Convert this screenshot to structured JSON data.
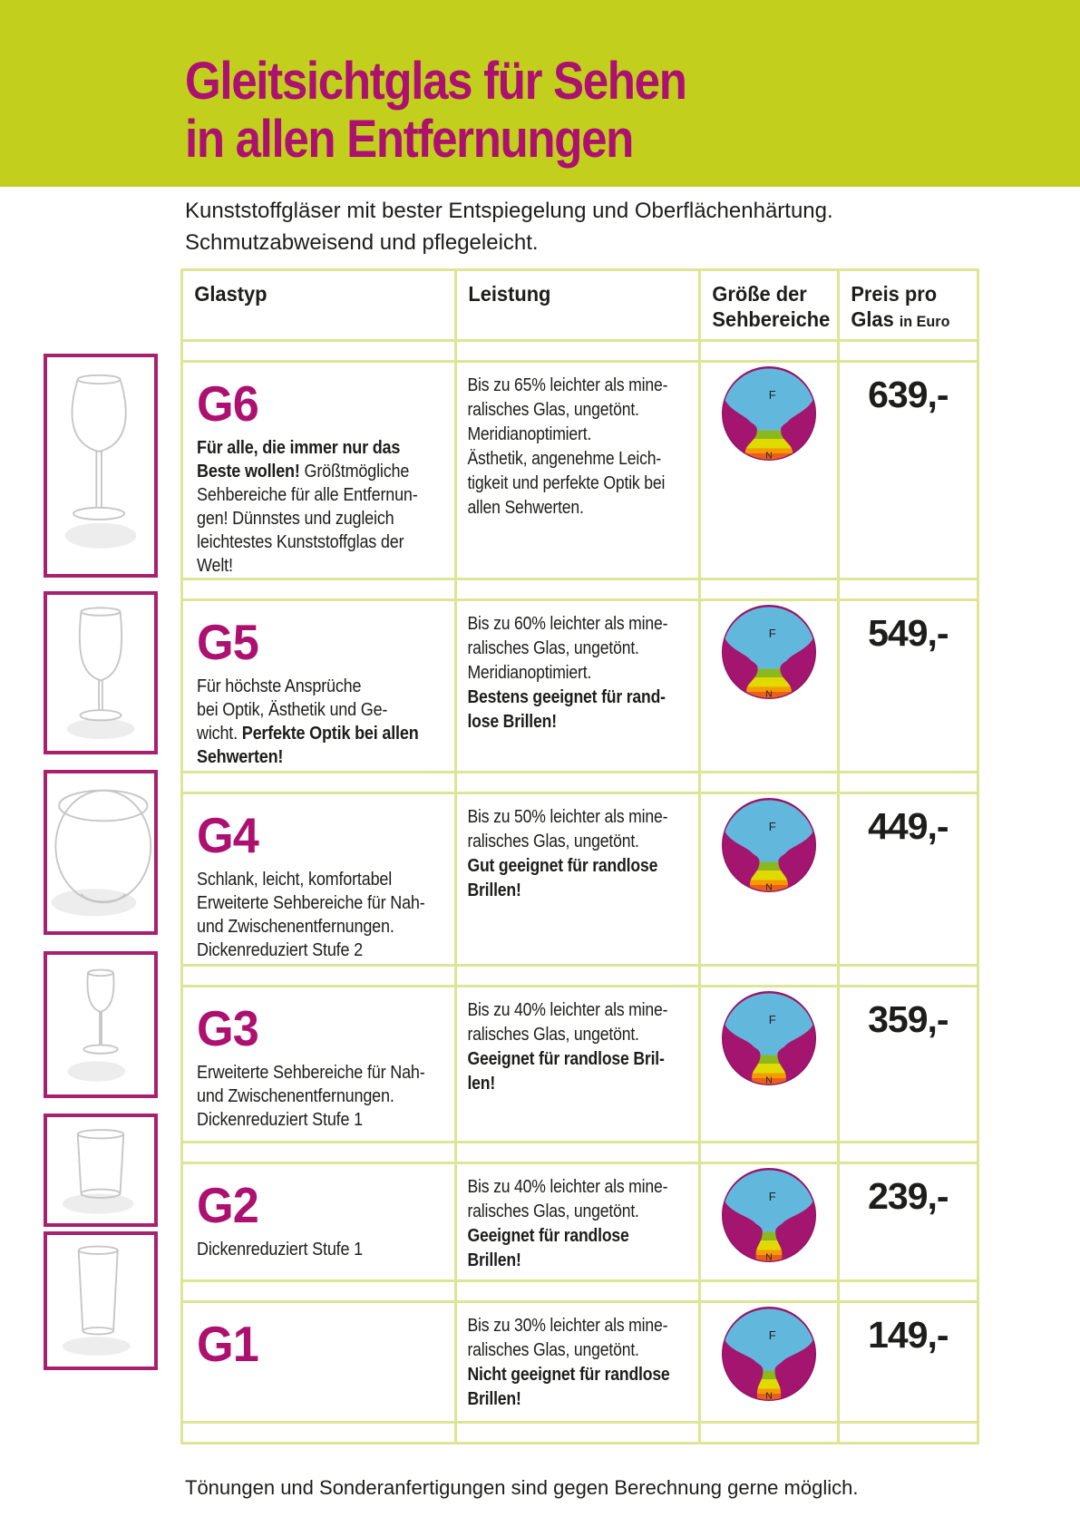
{
  "page": {
    "title": "Gleitsichtglas für Sehen\nin allen Entfernungen",
    "subtitle": "Kunststoffgläser mit bester Entspiegelung und Oberflächenhärtung.\nSchmutzabweisend und pflegeleicht.",
    "footer": "Tönungen und Sonderanfertigungen sind gegen Berechnung gerne möglich."
  },
  "colors": {
    "header_band": "#c3cf1d",
    "title_text": "#ad1170",
    "table_border": "#dde596",
    "photo_border": "#a8216f",
    "gcode_text": "#ad1170",
    "body_text": "#1d1d1b",
    "lens_far_blue": "#62b8dc",
    "lens_surround_magenta": "#a4156f",
    "lens_outline": "#8f1566",
    "lens_band_green": "#8bb81e",
    "lens_band_yellow": "#e0da00",
    "lens_band_orange": "#f59b00",
    "lens_band_red": "#e9601d"
  },
  "table": {
    "headers": {
      "glastyp": "Glastyp",
      "leistung": "Leistung",
      "sehbereiche": "Größe der\nSehbereiche",
      "preis_main": "Preis pro\nGlas",
      "preis_small": "in Euro"
    },
    "rows": [
      {
        "code": "G6",
        "glastyp_segments": [
          {
            "text": "Für alle, die immer nur das\nBeste wollen!",
            "bold": true
          },
          {
            "text": " Größtmögliche\nSehbereiche für alle Entfernun-\ngen! Dünnstes und zugleich\nleichtestes Kunststoffglas der\nWelt!",
            "bold": false
          }
        ],
        "leistung_segments": [
          {
            "text": "Bis zu 65% leichter als mine-\nralisches Glas, ungetönt.\nMeridianoptimiert.\nÄsthetik, angenehme Leich-\ntigkeit und perfekte Optik bei\nallen Sehwerten.",
            "bold": false
          }
        ],
        "lens": {
          "far_label": "F",
          "near_label": "N",
          "corridor": 1.0
        },
        "price": "639,-"
      },
      {
        "code": "G5",
        "glastyp_segments": [
          {
            "text": "Für höchste Ansprüche\nbei Optik, Ästhetik und Ge-\nwicht. ",
            "bold": false
          },
          {
            "text": "Perfekte Optik bei allen\nSehwerten!",
            "bold": true
          }
        ],
        "leistung_segments": [
          {
            "text": "Bis zu 60% leichter als mine-\nralisches Glas, ungetönt.\nMeridianoptimiert.\n",
            "bold": false
          },
          {
            "text": "Bestens geeignet für rand-\nlose Brillen!",
            "bold": true
          }
        ],
        "lens": {
          "far_label": "F",
          "near_label": "N",
          "corridor": 0.95
        },
        "price": "549,-"
      },
      {
        "code": "G4",
        "glastyp_segments": [
          {
            "text": "Schlank, leicht, komfortabel\nErweiterte Sehbereiche für Nah-\nund Zwischenentfernungen.\nDickenreduziert Stufe 2",
            "bold": false
          }
        ],
        "leistung_segments": [
          {
            "text": "Bis zu 50% leichter als mine-\nralisches Glas, ungetönt.\n",
            "bold": false
          },
          {
            "text": "Gut geeignet für randlose\nBrillen!",
            "bold": true
          }
        ],
        "lens": {
          "far_label": "F",
          "near_label": "N",
          "corridor": 0.8
        },
        "price": "449,-"
      },
      {
        "code": "G3",
        "glastyp_segments": [
          {
            "text": "Erweiterte Sehbereiche für Nah-\nund Zwischenentfernungen.\nDickenreduziert Stufe 1",
            "bold": false
          }
        ],
        "leistung_segments": [
          {
            "text": "Bis zu 40% leichter als mine-\nralisches Glas, ungetönt.\n",
            "bold": false
          },
          {
            "text": "Geeignet für randlose Bril-\nlen!",
            "bold": true
          }
        ],
        "lens": {
          "far_label": "F",
          "near_label": "N",
          "corridor": 0.72
        },
        "price": "359,-"
      },
      {
        "code": "G2",
        "glastyp_segments": [
          {
            "text": "Dickenreduziert Stufe 1",
            "bold": false
          }
        ],
        "leistung_segments": [
          {
            "text": "Bis zu 40% leichter als mine-\nralisches Glas, ungetönt.\n",
            "bold": false
          },
          {
            "text": "Geeignet für randlose\nBrillen!",
            "bold": true
          }
        ],
        "lens": {
          "far_label": "F",
          "near_label": "N",
          "corridor": 0.55
        },
        "price": "239,-"
      },
      {
        "code": "G1",
        "glastyp_segments": [],
        "leistung_segments": [
          {
            "text": "Bis zu 30% leichter als mine-\nralisches Glas, ungetönt.\n",
            "bold": false
          },
          {
            "text": "Nicht geeignet für randlose\nBrillen!",
            "bold": true
          }
        ],
        "lens": {
          "far_label": "F",
          "near_label": "N",
          "corridor": 0.5
        },
        "price": "149,-"
      }
    ]
  },
  "photos": [
    {
      "name": "balloon-wine-glass-photo",
      "shape": "balloon"
    },
    {
      "name": "white-wine-glass-photo",
      "shape": "whitewine"
    },
    {
      "name": "wine-glass-closeup-photo",
      "shape": "closeup"
    },
    {
      "name": "small-stem-glass-photo",
      "shape": "smallstem"
    },
    {
      "name": "tumbler-glass-photo",
      "shape": "tumbler"
    },
    {
      "name": "tall-water-glass-photo",
      "shape": "tall"
    }
  ]
}
